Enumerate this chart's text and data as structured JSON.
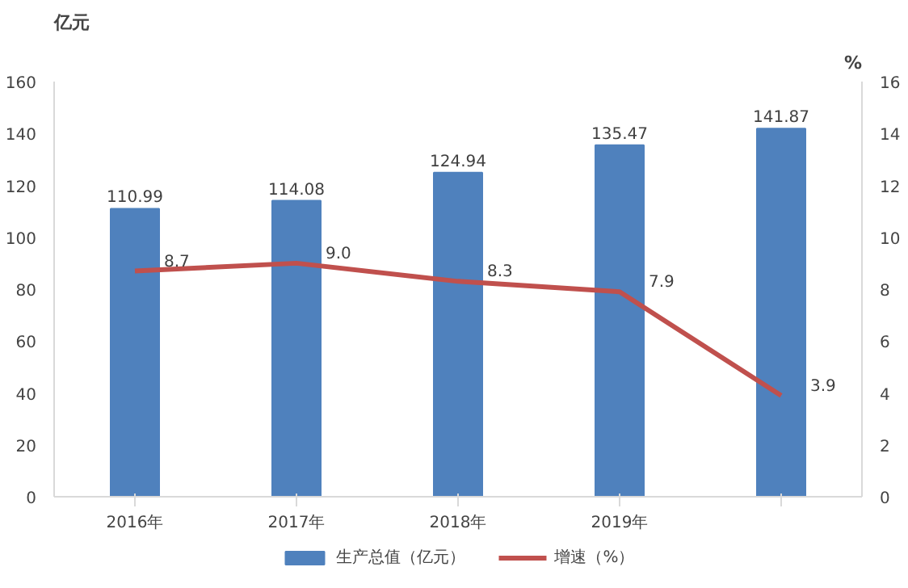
{
  "chart_data": {
    "type": "bar",
    "categories": [
      "2016年",
      "2017年",
      "2018年",
      "2019年",
      null
    ],
    "ylabel": "亿元",
    "y2label": "%",
    "series": [
      {
        "name": "生产总值（亿元）",
        "color": "#4f81bd",
        "values": [
          110.99,
          114.08,
          124.94,
          135.47,
          141.87
        ],
        "value_labels": [
          "110.99",
          "114.08",
          "124.94",
          "135.47",
          "141.87"
        ]
      },
      {
        "name": "增速（%）",
        "type": "line",
        "axis": "y2",
        "color": "#c0504d",
        "values": [
          8.7,
          9.0,
          8.3,
          7.9,
          3.9
        ],
        "value_labels": [
          "8.7",
          "9.0",
          "8.3",
          "7.9",
          "3.9"
        ]
      }
    ],
    "ylim": [
      0,
      160
    ],
    "yticks": [
      0,
      20,
      40,
      60,
      80,
      100,
      120,
      140,
      160
    ],
    "y2lim": [
      0,
      16
    ],
    "y2ticks": [
      0,
      2,
      4,
      6,
      8,
      10,
      12,
      14,
      16
    ],
    "legend": "bottom",
    "grid": false,
    "marker": "none",
    "line_style": "solid"
  }
}
